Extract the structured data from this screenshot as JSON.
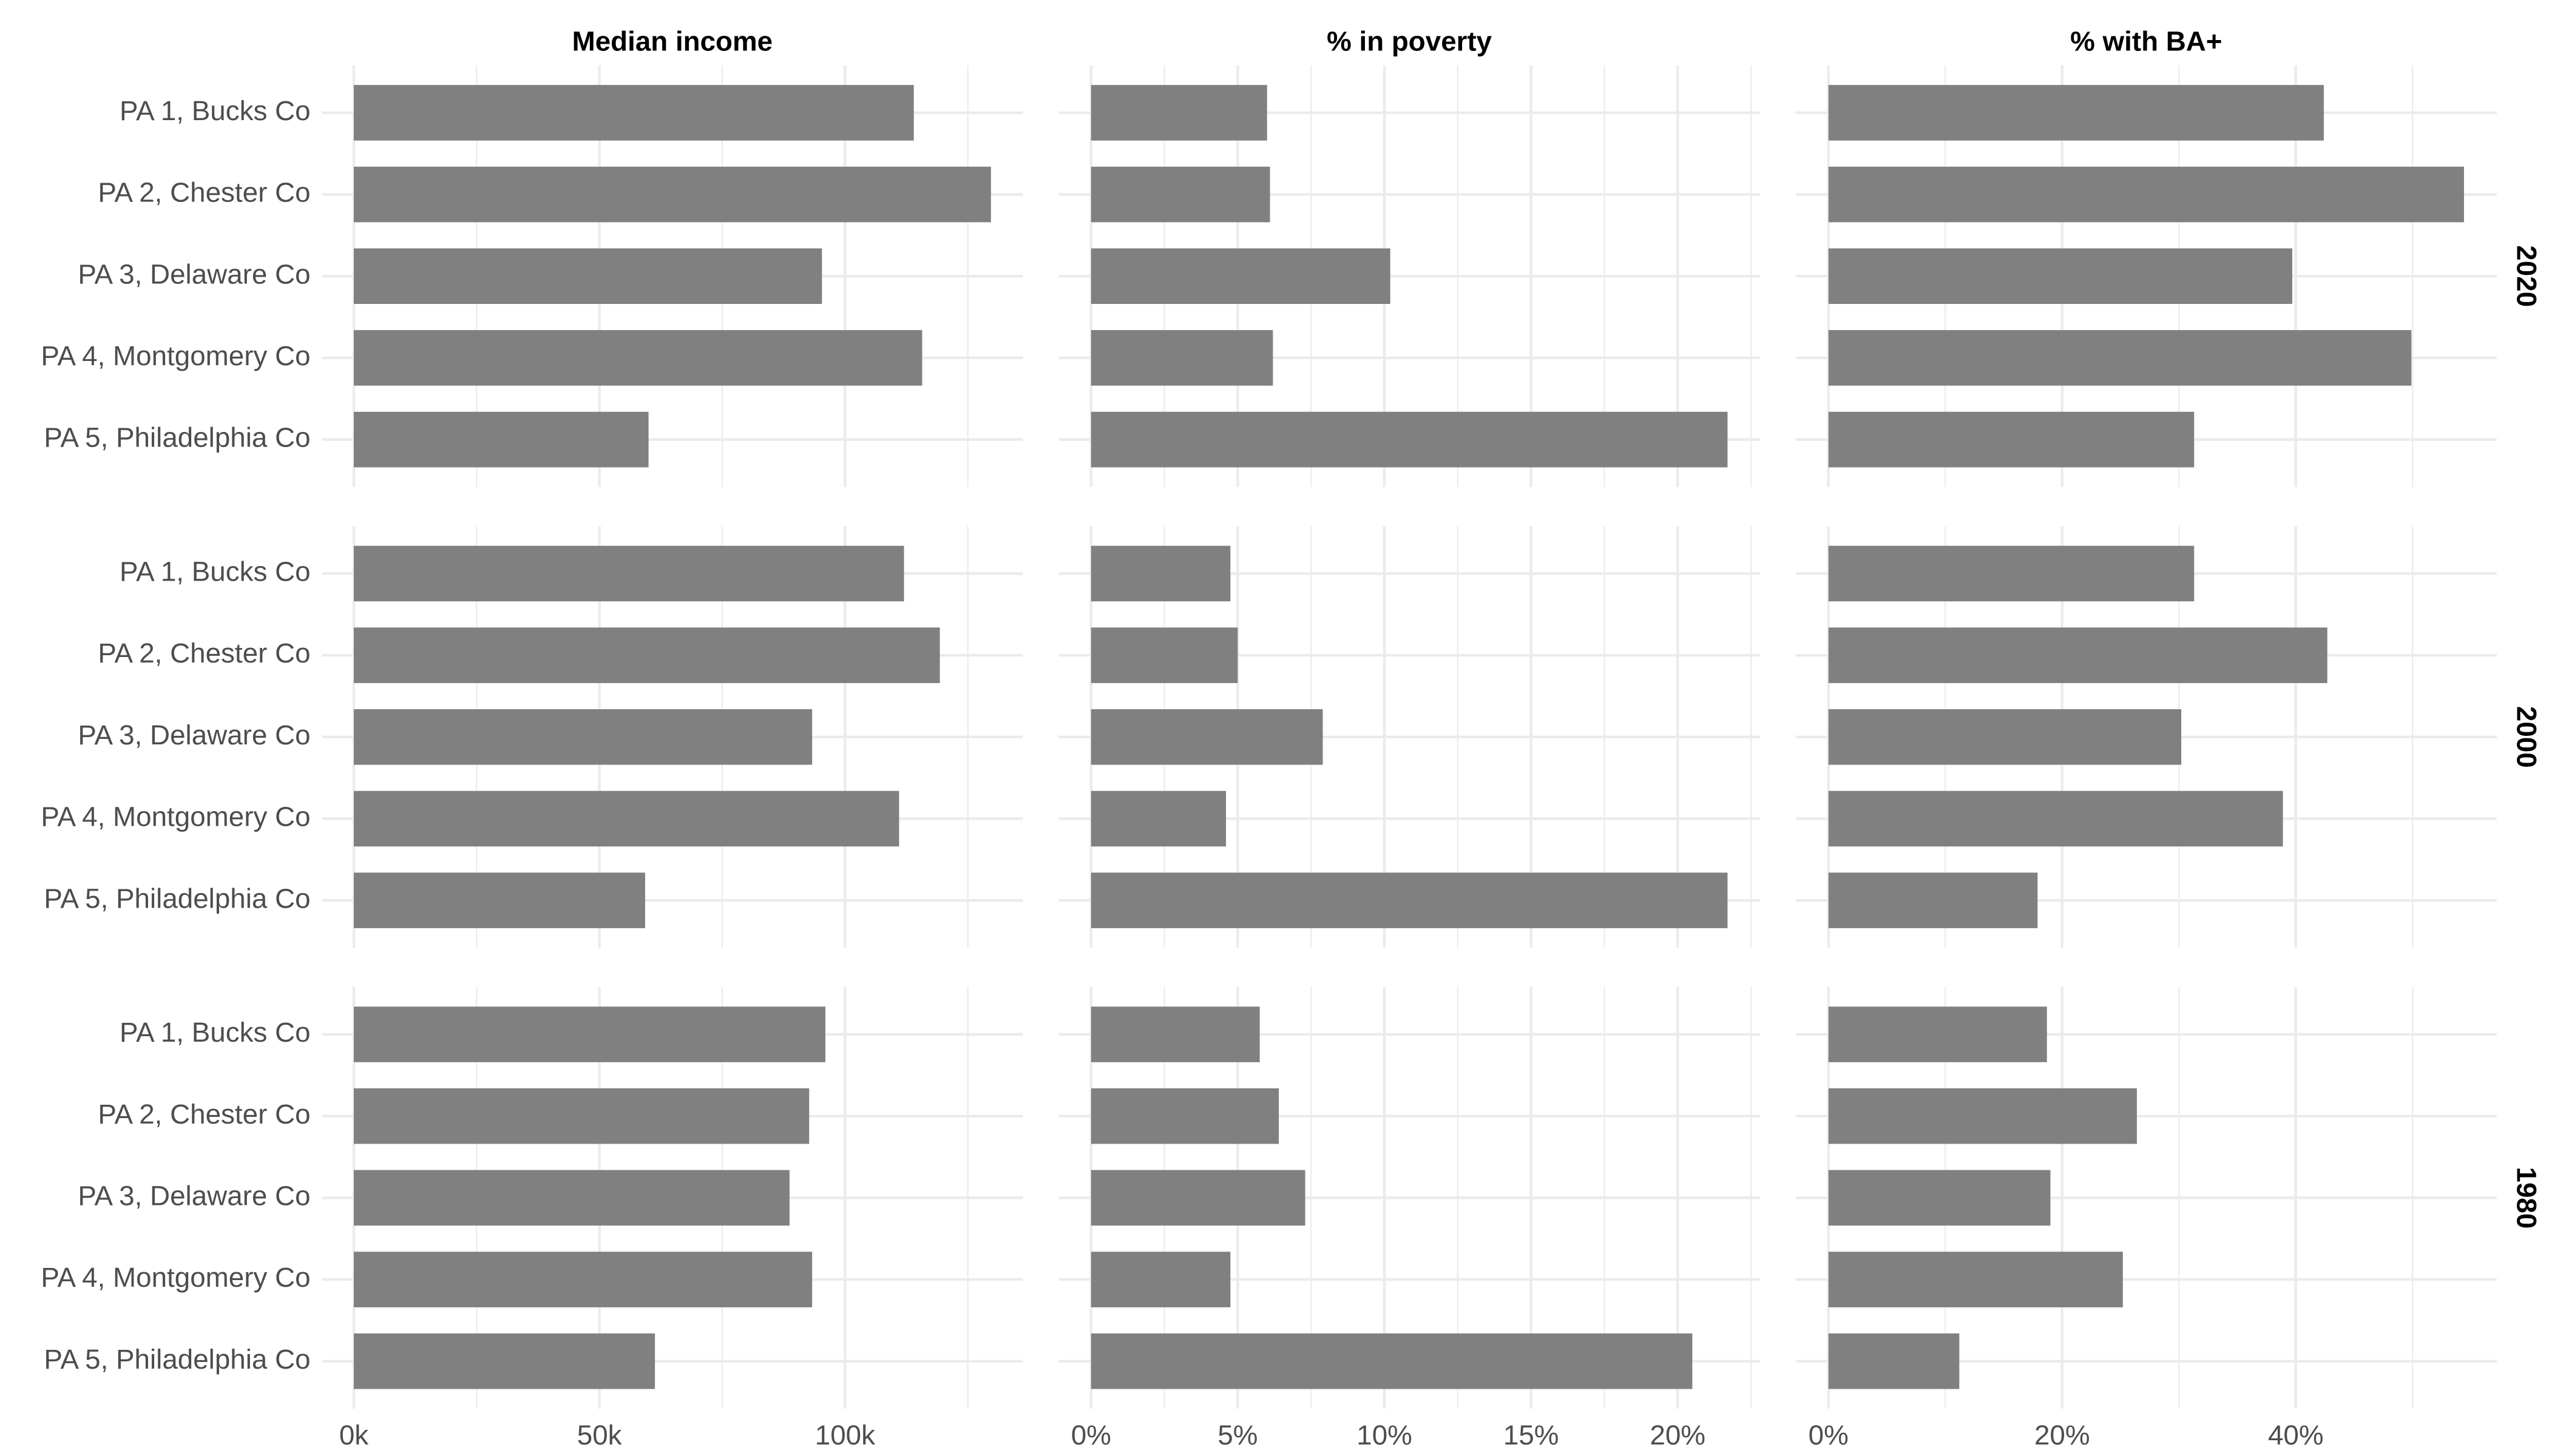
{
  "chart_data": {
    "type": "bar",
    "orientation": "horizontal",
    "facet_columns": [
      "Median income",
      "% in poverty",
      "% with BA+"
    ],
    "facet_rows": [
      "2020",
      "2000",
      "1980"
    ],
    "categories": [
      "PA 1, Bucks Co",
      "PA 2, Chester Co",
      "PA 3, Delaware Co",
      "PA 4, Montgomery Co",
      "PA 5, Philadelphia Co"
    ],
    "axes": [
      {
        "name": "Median income",
        "unit": "k",
        "xlim": [
          -6.5,
          136.2
        ],
        "ticks": [
          0,
          50,
          100
        ],
        "tick_labels": [
          "0k",
          "50k",
          "100k"
        ],
        "minor": [
          25,
          75,
          125
        ]
      },
      {
        "name": "% in poverty",
        "unit": "%",
        "xlim": [
          -1.1,
          22.8
        ],
        "ticks": [
          0,
          5,
          10,
          15,
          20
        ],
        "tick_labels": [
          "0%",
          "5%",
          "10%",
          "15%",
          "20%"
        ],
        "minor": [
          2.5,
          7.5,
          12.5,
          17.5,
          22.5
        ]
      },
      {
        "name": "% with BA+",
        "unit": "%",
        "xlim": [
          -2.8,
          57.2
        ],
        "ticks": [
          0,
          20,
          40
        ],
        "tick_labels": [
          "0%",
          "20%",
          "40%"
        ],
        "minor": [
          10,
          30,
          50
        ]
      }
    ],
    "values": {
      "2020": [
        [
          114,
          129.7,
          95.3,
          115.7,
          60
        ],
        [
          6.0,
          6.1,
          10.2,
          6.2,
          21.7
        ],
        [
          42.4,
          54.4,
          39.7,
          49.9,
          31.3
        ]
      ],
      "2000": [
        [
          112,
          119.3,
          93.3,
          111,
          59.3
        ],
        [
          4.75,
          5.0,
          7.9,
          4.6,
          21.7
        ],
        [
          31.3,
          42.7,
          30.2,
          38.9,
          17.9
        ]
      ],
      "1980": [
        [
          96,
          92.7,
          88.7,
          93.3,
          61.3
        ],
        [
          5.75,
          6.4,
          7.3,
          4.75,
          20.5
        ],
        [
          18.7,
          26.4,
          19.0,
          25.2,
          11.2
        ]
      ]
    },
    "colors": {
      "bar": "#808080",
      "grid": "#ebebeb",
      "text": "#4d4d4d"
    },
    "grid": true,
    "legend": "none"
  }
}
